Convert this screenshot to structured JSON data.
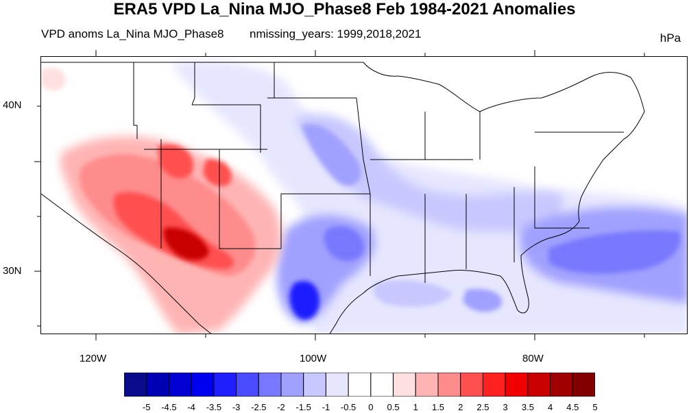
{
  "title": "ERA5 VPD La_Nina MJO_Phase8 Feb 1984-2021 Anomalies",
  "subtitle_left": "VPD anoms La_Nina MJO_Phase8",
  "subtitle_center": "nmissing_years: 1999,2018,2021",
  "units": "hPa",
  "lat_ticks": [
    "40N",
    "30N"
  ],
  "lon_ticks": [
    "120W",
    "100W",
    "80W"
  ],
  "colorbar": {
    "labels": [
      "-5",
      "-4.5",
      "-4",
      "-3.5",
      "-3",
      "-2.5",
      "-2",
      "-1.5",
      "-1",
      "-0.5",
      "0",
      "0.5",
      "1",
      "1.5",
      "2",
      "2.5",
      "3",
      "3.5",
      "4",
      "4.5",
      "5"
    ],
    "colors": [
      "#0a0a8c",
      "#0000b4",
      "#0000d2",
      "#0000f0",
      "#1e1eff",
      "#4b4bff",
      "#7878ff",
      "#a0a0ff",
      "#c8c8ff",
      "#e6e6ff",
      "#ffffff",
      "#ffffff",
      "#ffe0e0",
      "#ffb4b4",
      "#ff8c8c",
      "#ff5050",
      "#ff2020",
      "#f00000",
      "#c80000",
      "#a00000",
      "#820000"
    ]
  },
  "map": {
    "region": "Contiguous United States",
    "positive_color": "#e8383c",
    "negative_color": "#4a4af0"
  }
}
